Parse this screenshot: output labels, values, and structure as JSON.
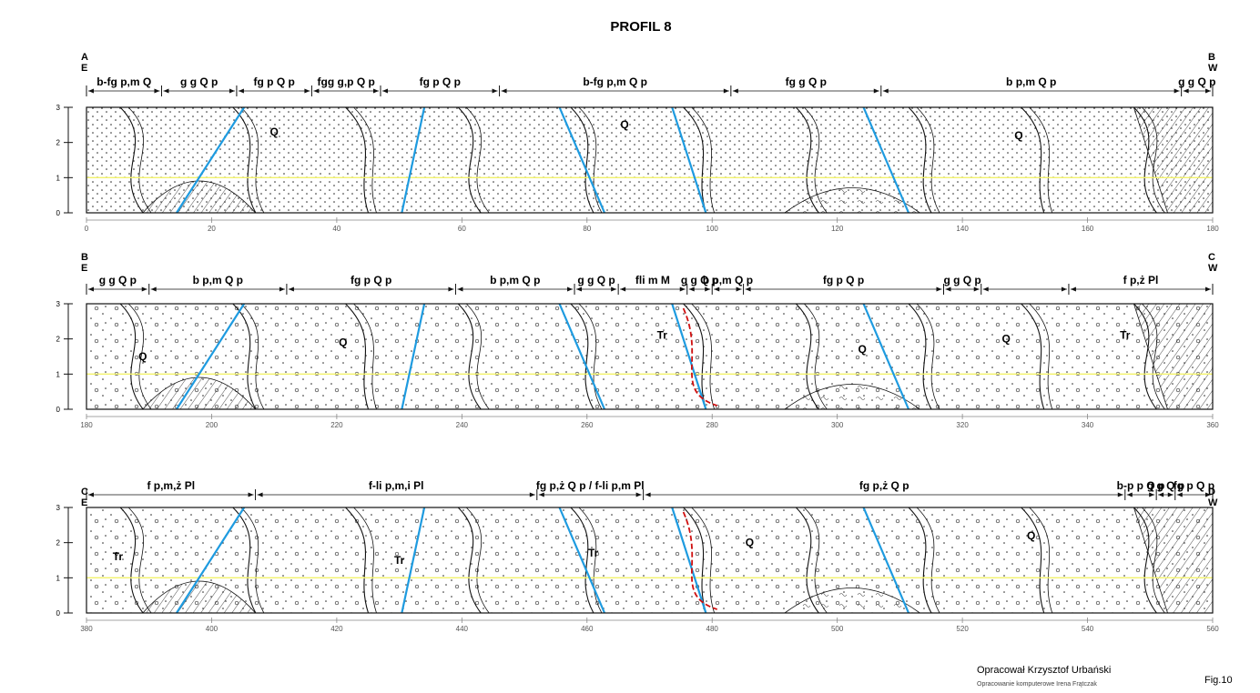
{
  "title": "PROFIL 8",
  "profiles": [
    {
      "start_letter": "A",
      "start_dir": "E",
      "end_letter": "B",
      "end_dir": "W",
      "x_range": [
        0,
        180
      ],
      "x_ticks": [
        0,
        20,
        40,
        60,
        80,
        100,
        120,
        140,
        160,
        180
      ],
      "segments": [
        {
          "from": 0,
          "to": 12,
          "label": "b-fg p,m Q"
        },
        {
          "from": 12,
          "to": 24,
          "label": "g g Q p"
        },
        {
          "from": 24,
          "to": 36,
          "label": "fg p Q p"
        },
        {
          "from": 36,
          "to": 47,
          "label": "fgg g,p Q p"
        },
        {
          "from": 47,
          "to": 66,
          "label": "fg p Q p"
        },
        {
          "from": 66,
          "to": 103,
          "label": "b-fg p,m Q p"
        },
        {
          "from": 103,
          "to": 127,
          "label": "fg g Q p"
        },
        {
          "from": 127,
          "to": 175,
          "label": "b p,m Q p"
        },
        {
          "from": 175,
          "to": 180,
          "label": "g g Q p"
        }
      ],
      "unit_labels": [
        {
          "x": 30,
          "y": 2.2,
          "t": "Q"
        },
        {
          "x": 86,
          "y": 2.4,
          "t": "Q"
        },
        {
          "x": 149,
          "y": 2.1,
          "t": "Q"
        }
      ]
    },
    {
      "start_letter": "B",
      "start_dir": "E",
      "end_letter": "C",
      "end_dir": "W",
      "x_range": [
        180,
        360
      ],
      "x_ticks": [
        180,
        200,
        220,
        240,
        260,
        280,
        300,
        320,
        340,
        360
      ],
      "segments": [
        {
          "from": 180,
          "to": 190,
          "label": "g g Q p"
        },
        {
          "from": 190,
          "to": 212,
          "label": "b p,m Q p"
        },
        {
          "from": 212,
          "to": 239,
          "label": "fg p Q p"
        },
        {
          "from": 239,
          "to": 258,
          "label": "b p,m Q p"
        },
        {
          "from": 258,
          "to": 265,
          "label": "g g Q p"
        },
        {
          "from": 265,
          "to": 276,
          "label": "fli m M"
        },
        {
          "from": 276,
          "to": 280,
          "label": "g g Q p"
        },
        {
          "from": 280,
          "to": 285,
          "label": "b p,m Q p"
        },
        {
          "from": 285,
          "to": 317,
          "label": "fg p Q p"
        },
        {
          "from": 317,
          "to": 323,
          "label": "g g Q p"
        },
        {
          "from": 323,
          "to": 337,
          "label": ""
        },
        {
          "from": 337,
          "to": 360,
          "label": "f p,ż Pl"
        }
      ],
      "unit_labels": [
        {
          "x": 189,
          "y": 1.4,
          "t": "Q"
        },
        {
          "x": 221,
          "y": 1.8,
          "t": "Q"
        },
        {
          "x": 272,
          "y": 2.0,
          "t": "Tr"
        },
        {
          "x": 304,
          "y": 1.6,
          "t": "Q"
        },
        {
          "x": 327,
          "y": 1.9,
          "t": "Q"
        },
        {
          "x": 346,
          "y": 2.0,
          "t": "Tr"
        }
      ]
    },
    {
      "start_letter": "C",
      "start_dir": "E",
      "end_letter": "D",
      "end_dir": "W",
      "x_range": [
        380,
        560
      ],
      "x_ticks": [
        380,
        400,
        420,
        440,
        460,
        480,
        500,
        520,
        540,
        560
      ],
      "segments": [
        {
          "from": 380,
          "to": 407,
          "label": "f p,m,ż Pl"
        },
        {
          "from": 407,
          "to": 452,
          "label": "f-li p,m,i Pl"
        },
        {
          "from": 452,
          "to": 469,
          "label": "fg p,ż Q p / f-li p,m Pl"
        },
        {
          "from": 469,
          "to": 546,
          "label": "fg p,ż Q p"
        },
        {
          "from": 546,
          "to": 551,
          "label": "b-p p Q p"
        },
        {
          "from": 551,
          "to": 554,
          "label": "g g Q p"
        },
        {
          "from": 554,
          "to": 560,
          "label": "fg p Q p"
        }
      ],
      "unit_labels": [
        {
          "x": 385,
          "y": 1.5,
          "t": "Tr"
        },
        {
          "x": 430,
          "y": 1.4,
          "t": "Tr"
        },
        {
          "x": 461,
          "y": 1.6,
          "t": "Tr"
        },
        {
          "x": 486,
          "y": 1.9,
          "t": "Q"
        },
        {
          "x": 531,
          "y": 2.1,
          "t": "Q"
        }
      ]
    }
  ],
  "y_ticks": [
    0,
    1,
    2,
    3
  ],
  "colors": {
    "fault": "#1e9be0",
    "boundary": "#d01010",
    "reference_line": "#f3f36a",
    "ink": "#111111"
  },
  "credits": {
    "author": "Opracował Krzysztof Urbański",
    "computer": "Opracowanie komputerowe Irena Frątczak",
    "fig": "Fig.10"
  }
}
